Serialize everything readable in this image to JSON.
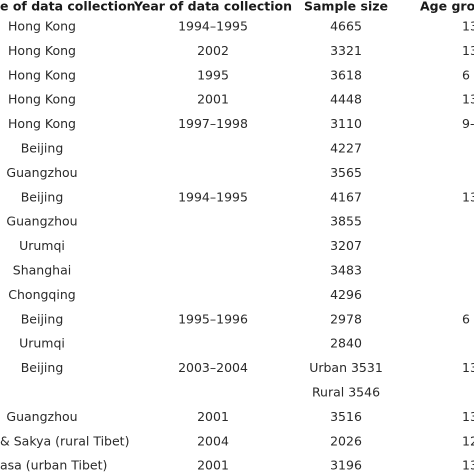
{
  "table": {
    "header": [
      "e of data collection",
      "Year of data collection",
      "Sample size",
      "Age gro"
    ],
    "rows": [
      [
        "Hong Kong",
        "1994–1995",
        "4665",
        "13"
      ],
      [
        "Hong Kong",
        "2002",
        "3321",
        "13"
      ],
      [
        "Hong Kong",
        "1995",
        "3618",
        "6"
      ],
      [
        "Hong Kong",
        "2001",
        "4448",
        "13"
      ],
      [
        "Hong Kong",
        "1997–1998",
        "3110",
        "9-"
      ],
      [
        "Beijing",
        null,
        "4227",
        null
      ],
      [
        "Guangzhou",
        null,
        "3565",
        null
      ],
      [
        "Beijing",
        "1994–1995",
        "4167",
        "13"
      ],
      [
        "Guangzhou",
        null,
        "3855",
        null
      ],
      [
        "Urumqi",
        null,
        "3207",
        null
      ],
      [
        "Shanghai",
        null,
        "3483",
        null
      ],
      [
        "Chongqing",
        null,
        "4296",
        null
      ],
      [
        "Beijing",
        "1995–1996",
        "2978",
        "6"
      ],
      [
        "Urumqi",
        null,
        "2840",
        null
      ],
      [
        "Beijing",
        "2003–2004",
        "Urban 3531",
        "13"
      ],
      [
        null,
        null,
        "Rural  3546",
        null
      ],
      [
        "Guangzhou",
        "2001",
        "3516",
        "13"
      ],
      [
        "& Sakya (rural Tibet)",
        "2004",
        "2026",
        "12"
      ],
      [
        "asa (urban Tibet)",
        "2001",
        "3196",
        "13"
      ]
    ]
  }
}
